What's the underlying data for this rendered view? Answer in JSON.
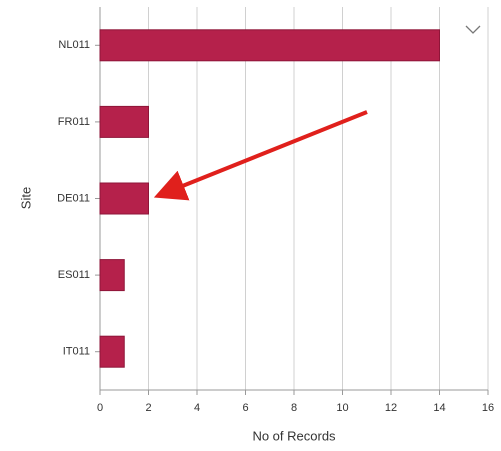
{
  "chart_data": {
    "type": "bar",
    "orientation": "horizontal",
    "x_label": "No of Records",
    "y_label": "Site",
    "categories": [
      "NL011",
      "FR011",
      "DE011",
      "ES011",
      "IT011"
    ],
    "values": [
      14,
      2,
      2,
      1,
      1
    ],
    "color": "#b5214b",
    "xlim": [
      0,
      16
    ],
    "xticks": [
      0,
      2,
      4,
      6,
      8,
      10,
      12,
      14,
      16
    ],
    "grid": true
  }
}
